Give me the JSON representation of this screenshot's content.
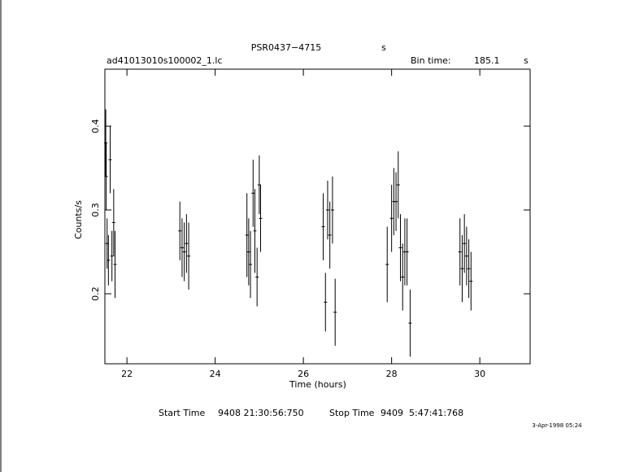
{
  "chart_data": {
    "type": "errorbar",
    "title": "PSR0437−4715",
    "title_unit": "s",
    "file": "ad41013010s100002_1.lc",
    "bin_label": "Bin time:",
    "bin_value": "185.1",
    "bin_unit": "s",
    "xlabel": "Time (hours)",
    "ylabel": "Counts/s",
    "start_label": "Start Time",
    "start_value": "9408 21:30:56:750",
    "stop_label": "Stop Time",
    "stop_value": "9409  5:47:41:768",
    "date": "3-Apr-1998 05:24",
    "color": "#000000",
    "xlim": [
      21.5,
      31.14
    ],
    "ylim": [
      0.1165,
      0.468
    ],
    "xticks": [
      22,
      24,
      26,
      28,
      30
    ],
    "yticks": [
      0.2,
      0.3,
      0.4
    ],
    "x": [
      21.52,
      21.53,
      21.55,
      21.58,
      21.62,
      21.66,
      21.7,
      21.73,
      23.2,
      23.25,
      23.3,
      23.35,
      23.4,
      24.72,
      24.76,
      24.8,
      24.86,
      24.9,
      24.95,
      25.0,
      25.03,
      26.45,
      26.5,
      26.55,
      26.6,
      26.66,
      26.72,
      27.9,
      28.0,
      28.05,
      28.1,
      28.15,
      28.2,
      28.25,
      28.3,
      28.35,
      28.42,
      29.55,
      29.6,
      29.65,
      29.7,
      29.75,
      29.8
    ],
    "values": [
      0.38,
      0.34,
      0.26,
      0.24,
      0.36,
      0.245,
      0.285,
      0.235,
      0.275,
      0.255,
      0.25,
      0.26,
      0.245,
      0.27,
      0.25,
      0.235,
      0.32,
      0.275,
      0.22,
      0.33,
      0.29,
      0.28,
      0.19,
      0.3,
      0.27,
      0.3,
      0.178,
      0.235,
      0.29,
      0.31,
      0.31,
      0.33,
      0.255,
      0.22,
      0.25,
      0.25,
      0.165,
      0.25,
      0.23,
      0.26,
      0.245,
      0.23,
      0.215
    ],
    "errors": [
      0.04,
      0.04,
      0.03,
      0.03,
      0.04,
      0.03,
      0.04,
      0.04,
      0.035,
      0.035,
      0.035,
      0.035,
      0.04,
      0.05,
      0.04,
      0.04,
      0.04,
      0.05,
      0.035,
      0.035,
      0.04,
      0.04,
      0.035,
      0.035,
      0.04,
      0.04,
      0.04,
      0.045,
      0.04,
      0.04,
      0.035,
      0.04,
      0.04,
      0.04,
      0.04,
      0.04,
      0.04,
      0.04,
      0.04,
      0.035,
      0.035,
      0.035,
      0.035
    ]
  }
}
